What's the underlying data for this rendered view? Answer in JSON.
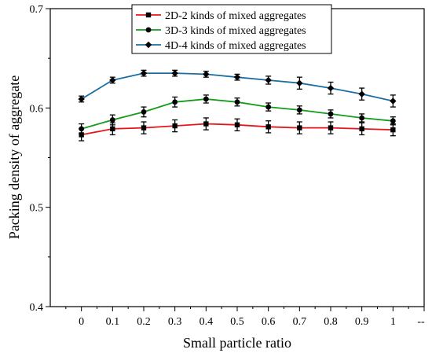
{
  "chart_data": {
    "type": "line",
    "title": "",
    "xlabel": "Small particle ratio",
    "ylabel": "Packing density of aggregate",
    "xlim": [
      -0.1,
      1.1
    ],
    "ylim": [
      0.4,
      0.7
    ],
    "x_ticks": [
      0,
      0.1,
      0.2,
      0.3,
      0.4,
      0.5,
      0.6,
      0.7,
      0.8,
      0.9,
      1
    ],
    "x_tick_labels": [
      "0",
      "0.1",
      "0.2",
      "0.3",
      "0.4",
      "0.5",
      "0.6",
      "0.7",
      "0.8",
      "0.9",
      "1"
    ],
    "x_extra_tick": {
      "x": 1.1,
      "label": "--"
    },
    "y_ticks": [
      0.4,
      0.5,
      0.6,
      0.7
    ],
    "y_tick_labels": [
      "0.4",
      "0.5",
      "0.6",
      "0.7"
    ],
    "grid": false,
    "legend_position": "top-right",
    "x": [
      0,
      0.1,
      0.2,
      0.3,
      0.4,
      0.5,
      0.6,
      0.7,
      0.8,
      0.9,
      1
    ],
    "series": [
      {
        "name": "2D-2 kinds of mixed aggregates",
        "color": "#e8141b",
        "marker": "square",
        "values": [
          0.573,
          0.579,
          0.58,
          0.582,
          0.584,
          0.583,
          0.581,
          0.58,
          0.58,
          0.579,
          0.578
        ],
        "errors": [
          0.006,
          0.006,
          0.006,
          0.006,
          0.006,
          0.006,
          0.006,
          0.006,
          0.006,
          0.006,
          0.006
        ]
      },
      {
        "name": "3D-3 kinds of mixed aggregates",
        "color": "#159b1b",
        "marker": "circle",
        "values": [
          0.579,
          0.588,
          0.596,
          0.606,
          0.609,
          0.606,
          0.601,
          0.598,
          0.594,
          0.59,
          0.587
        ],
        "errors": [
          0.005,
          0.005,
          0.005,
          0.005,
          0.004,
          0.004,
          0.004,
          0.004,
          0.004,
          0.004,
          0.004
        ]
      },
      {
        "name": "4D-4 kinds of mixed aggregates",
        "color": "#1b6fa0",
        "marker": "diamond",
        "values": [
          0.609,
          0.628,
          0.635,
          0.635,
          0.634,
          0.631,
          0.628,
          0.625,
          0.62,
          0.614,
          0.607
        ],
        "errors": [
          0.003,
          0.003,
          0.003,
          0.003,
          0.003,
          0.003,
          0.004,
          0.006,
          0.006,
          0.006,
          0.006
        ]
      }
    ]
  }
}
